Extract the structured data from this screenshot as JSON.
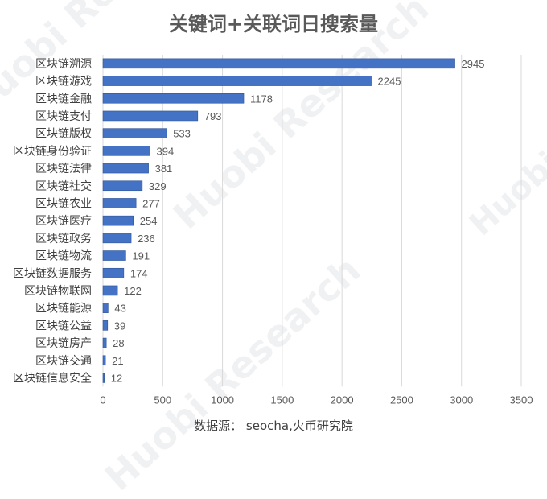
{
  "chart_data": {
    "type": "bar",
    "orientation": "horizontal",
    "title": "关键词+关联词日搜索量",
    "categories": [
      "区块链溯源",
      "区块链游戏",
      "区块链金融",
      "区块链支付",
      "区块链版权",
      "区块链身份验证",
      "区块链法律",
      "区块链社交",
      "区块链农业",
      "区块链医疗",
      "区块链政务",
      "区块链物流",
      "区块链数据服务",
      "区块链物联网",
      "区块链能源",
      "区块链公益",
      "区块链房产",
      "区块链交通",
      "区块链信息安全"
    ],
    "values": [
      2945,
      2245,
      1178,
      793,
      533,
      394,
      381,
      329,
      277,
      254,
      236,
      191,
      174,
      122,
      43,
      39,
      28,
      21,
      12
    ],
    "xlim": [
      0,
      3500
    ],
    "xticks": [
      0,
      500,
      1000,
      1500,
      2000,
      2500,
      3000,
      3500
    ],
    "grid": "vertical",
    "data_labels": true,
    "bar_color": "#4472C4",
    "source": "数据源： seocha,火币研究院",
    "watermark": "Huobi Research"
  }
}
